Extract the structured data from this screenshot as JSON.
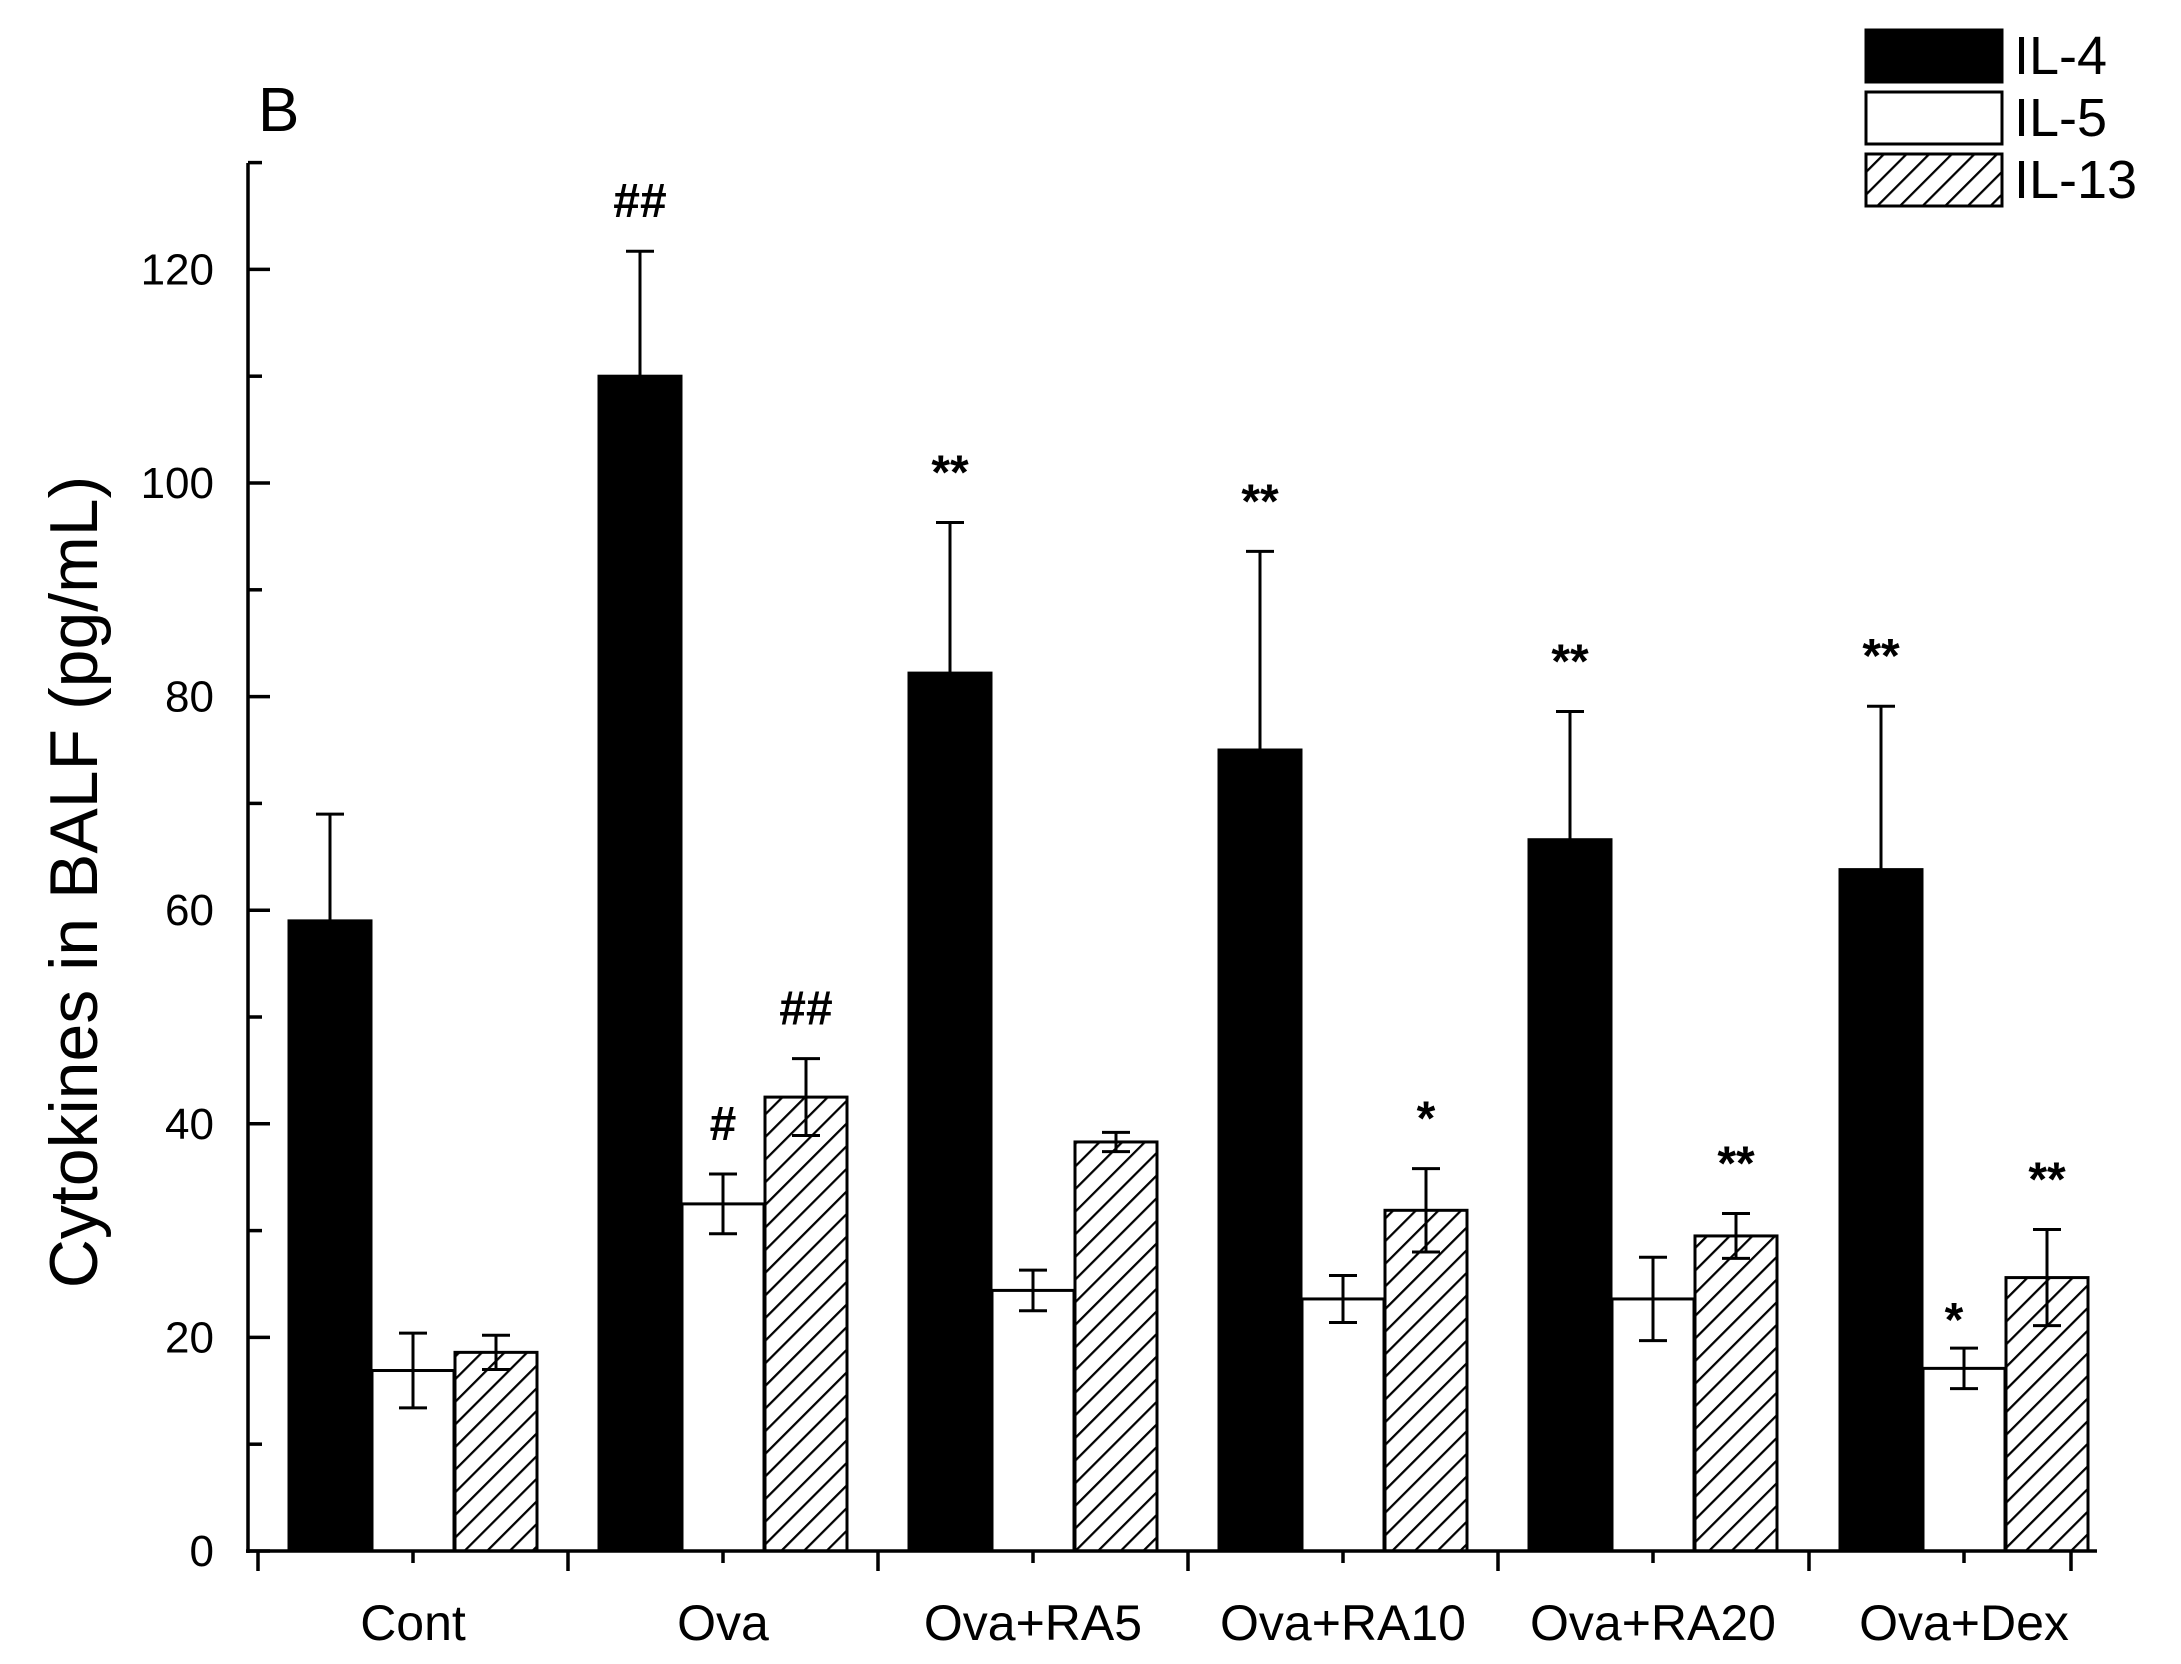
{
  "chart_data": {
    "type": "bar",
    "panel_label": "B",
    "ylabel": "Cytokines in BALF (pg/mL)",
    "xlabel": "",
    "ylim": [
      0,
      130
    ],
    "yticks": [
      0,
      20,
      40,
      60,
      80,
      100,
      120
    ],
    "grid": false,
    "legend_position": "top-right",
    "categories": [
      "Cont",
      "Ova",
      "Ova+RA5",
      "Ova+RA10",
      "Ova+RA20",
      "Ova+Dex"
    ],
    "series": [
      {
        "name": "IL-4",
        "fill": "solid",
        "color": "#000000",
        "values": [
          59,
          110,
          82.2,
          75,
          66.6,
          63.8
        ],
        "errors": [
          10,
          11.7,
          14.1,
          18.6,
          12,
          15.3
        ],
        "annotations": [
          "",
          "##",
          "**",
          "**",
          "**",
          "**"
        ]
      },
      {
        "name": "IL-5",
        "fill": "empty",
        "color": "#ffffff",
        "values": [
          16.9,
          32.5,
          24.4,
          23.6,
          23.6,
          17.1
        ],
        "errors": [
          3.5,
          2.8,
          1.9,
          2.2,
          3.9,
          1.9
        ],
        "annotations": [
          "",
          "#",
          "",
          "",
          "",
          "*"
        ]
      },
      {
        "name": "IL-13",
        "fill": "hatched",
        "color": "#ffffff",
        "values": [
          18.6,
          42.5,
          38.3,
          31.9,
          29.5,
          25.6
        ],
        "errors": [
          1.6,
          3.6,
          0.9,
          3.9,
          2.1,
          4.5
        ],
        "annotations": [
          "",
          "##",
          "",
          "*",
          "**",
          "**"
        ]
      }
    ]
  }
}
